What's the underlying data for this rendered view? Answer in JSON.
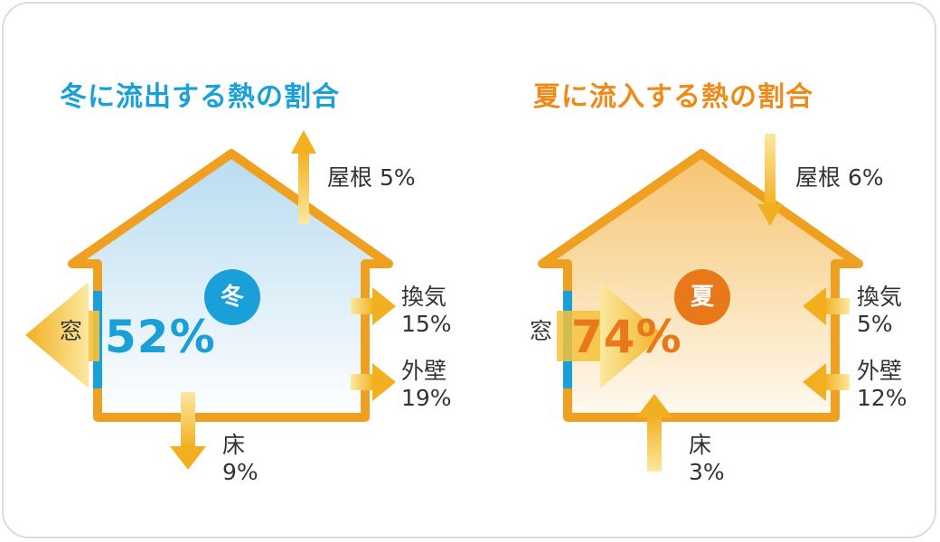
{
  "winter": {
    "title": "冬に流出する熱の割合",
    "badge": "冬",
    "window": {
      "label": "窓",
      "value": "52%",
      "percent": 52
    },
    "roof": {
      "label": "屋根 5%",
      "percent": 5
    },
    "ventilation": {
      "label": "換気",
      "value": "15%",
      "percent": 15
    },
    "wall": {
      "label": "外壁",
      "value": "19%",
      "percent": 19
    },
    "floor": {
      "label": "床",
      "value": "9%",
      "percent": 9
    },
    "colors": {
      "accent": "#1aa0d8",
      "frame": "#f0a020",
      "fill_top": "#b8dcf0",
      "fill_bottom": "#ffffff"
    }
  },
  "summer": {
    "title": "夏に流入する熱の割合",
    "badge": "夏",
    "window": {
      "label": "窓",
      "value": "74%",
      "percent": 74
    },
    "roof": {
      "label": "屋根 6%",
      "percent": 6
    },
    "ventilation": {
      "label": "換気",
      "value": "5%",
      "percent": 5
    },
    "wall": {
      "label": "外壁",
      "value": "12%",
      "percent": 12
    },
    "floor": {
      "label": "床",
      "value": "3%",
      "percent": 3
    },
    "colors": {
      "accent": "#e8781a",
      "frame": "#f0a020",
      "fill_top": "#f6c470",
      "fill_bottom": "#fffaf0"
    }
  },
  "arrow_color": "#f4c23a"
}
